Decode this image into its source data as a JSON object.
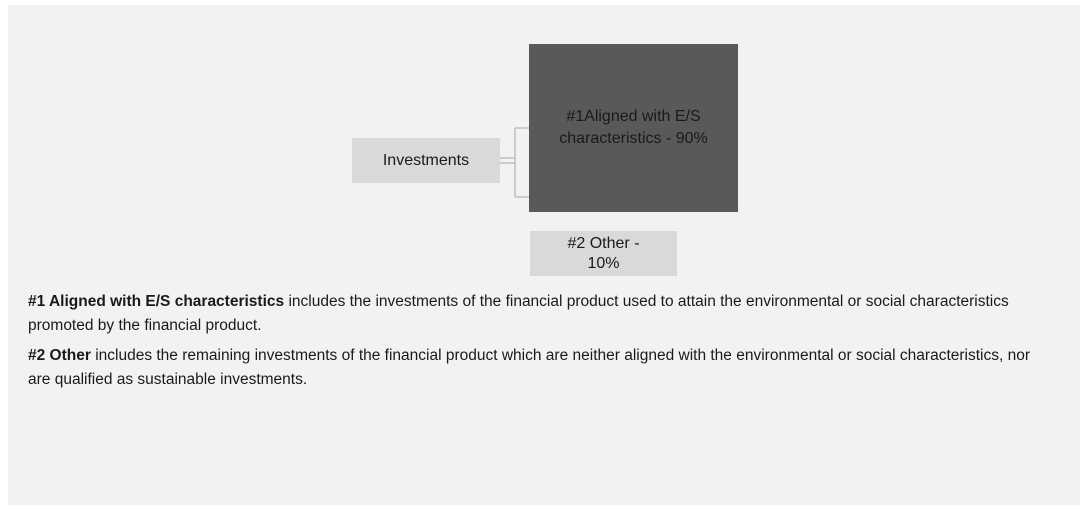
{
  "nodes": [
    {
      "label": "Investments"
    },
    {
      "label": "#1Aligned with E/S characteristics - 90%"
    },
    {
      "label": "#2 Other - 10%"
    }
  ],
  "notes": [
    {
      "term": "#1 Aligned with E/S characteristics",
      "text": " includes the investments of the financial product used to attain the environmental or social characteristics promoted by the financial product."
    },
    {
      "term": "#2 Other",
      "text": " includes the remaining investments of the financial product which are neither aligned with the environmental or social characteristics, nor are qualified as sustainable investments."
    }
  ]
}
